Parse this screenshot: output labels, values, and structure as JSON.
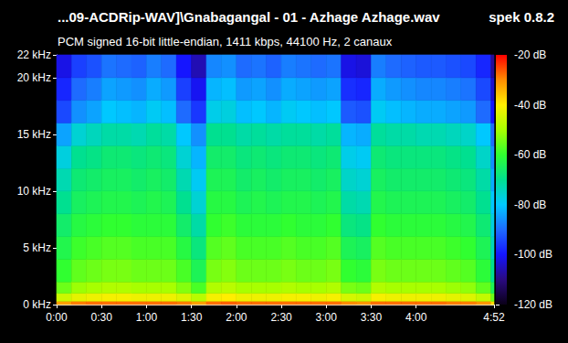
{
  "chart_data": {
    "type": "heatmap",
    "title": "...09-ACDRip-WAV]\\Gnabagangal - 01 - Azhage Azhage.wav",
    "subtitle": "PCM signed 16-bit little-endian, 1411 kbps, 44100 Hz, 2 canaux",
    "annotations": [
      "spek 0.8.2"
    ],
    "xlim": [
      0,
      292
    ],
    "xticks": [
      {
        "value": 0,
        "label": "0:00"
      },
      {
        "value": 30,
        "label": "0:30"
      },
      {
        "value": 60,
        "label": "1:00"
      },
      {
        "value": 90,
        "label": "1:30"
      },
      {
        "value": 120,
        "label": "2:00"
      },
      {
        "value": 150,
        "label": "2:30"
      },
      {
        "value": 180,
        "label": "3:00"
      },
      {
        "value": 210,
        "label": "3:30"
      },
      {
        "value": 240,
        "label": "4:00"
      },
      {
        "value": 292,
        "label": "4:52"
      }
    ],
    "ylim": [
      0,
      22
    ],
    "yticks": [
      {
        "value": 0,
        "label": "0 kHz"
      },
      {
        "value": 5,
        "label": "5 kHz"
      },
      {
        "value": 10,
        "label": "10 kHz"
      },
      {
        "value": 15,
        "label": "15 kHz"
      },
      {
        "value": 20,
        "label": "20 kHz"
      },
      {
        "value": 22,
        "label": "22 kHz"
      }
    ],
    "time_edges": [
      0,
      10,
      20,
      30,
      40,
      50,
      60,
      70,
      80,
      90,
      100,
      110,
      120,
      130,
      140,
      150,
      160,
      170,
      180,
      190,
      200,
      210,
      220,
      230,
      240,
      250,
      260,
      270,
      280,
      290,
      292
    ],
    "freq_edges": [
      0,
      0.3,
      1,
      2,
      4,
      6,
      8,
      10,
      12,
      14,
      16,
      18,
      20,
      22
    ],
    "cells": [
      [
        -32,
        -46,
        -55,
        -60,
        -63,
        -66,
        -70,
        -73,
        -77,
        -84,
        -94,
        -98,
        -102
      ],
      [
        -29,
        -43,
        -51,
        -56,
        -59,
        -62,
        -65,
        -67,
        -70,
        -76,
        -86,
        -90,
        -95
      ],
      [
        -28,
        -42,
        -50,
        -55,
        -58,
        -61,
        -64,
        -66,
        -69,
        -74,
        -84,
        -88,
        -93
      ],
      [
        -28,
        -41,
        -49,
        -54,
        -57,
        -60,
        -63,
        -65,
        -67,
        -72,
        -80,
        -84,
        -89
      ],
      [
        -28,
        -41,
        -49,
        -54,
        -57,
        -60,
        -63,
        -65,
        -67,
        -72,
        -81,
        -85,
        -90
      ],
      [
        -28,
        -42,
        -50,
        -55,
        -58,
        -61,
        -64,
        -66,
        -68,
        -73,
        -82,
        -86,
        -91
      ],
      [
        -28,
        -42,
        -50,
        -55,
        -58,
        -61,
        -63,
        -65,
        -67,
        -71,
        -79,
        -83,
        -88
      ],
      [
        -28,
        -42,
        -50,
        -55,
        -58,
        -61,
        -64,
        -66,
        -68,
        -72,
        -81,
        -85,
        -90
      ],
      [
        -29,
        -44,
        -53,
        -58,
        -62,
        -66,
        -70,
        -73,
        -76,
        -80,
        -90,
        -95,
        -100
      ],
      [
        -32,
        -48,
        -58,
        -64,
        -68,
        -72,
        -76,
        -79,
        -82,
        -86,
        -96,
        -101,
        -106
      ],
      [
        -28,
        -41,
        -49,
        -54,
        -57,
        -60,
        -62,
        -64,
        -66,
        -70,
        -78,
        -82,
        -87
      ],
      [
        -27,
        -40,
        -48,
        -53,
        -56,
        -59,
        -62,
        -64,
        -66,
        -70,
        -77,
        -81,
        -86
      ],
      [
        -28,
        -42,
        -50,
        -55,
        -58,
        -61,
        -64,
        -66,
        -68,
        -72,
        -81,
        -85,
        -90
      ],
      [
        -28,
        -42,
        -50,
        -55,
        -58,
        -61,
        -63,
        -65,
        -67,
        -71,
        -80,
        -84,
        -89
      ],
      [
        -28,
        -42,
        -50,
        -55,
        -58,
        -61,
        -64,
        -66,
        -68,
        -72,
        -82,
        -86,
        -91
      ],
      [
        -28,
        -41,
        -49,
        -54,
        -57,
        -60,
        -63,
        -65,
        -67,
        -71,
        -79,
        -83,
        -88
      ],
      [
        -28,
        -41,
        -50,
        -55,
        -58,
        -61,
        -63,
        -65,
        -67,
        -71,
        -80,
        -84,
        -89
      ],
      [
        -28,
        -42,
        -50,
        -55,
        -58,
        -61,
        -64,
        -66,
        -68,
        -72,
        -81,
        -85,
        -90
      ],
      [
        -28,
        -41,
        -49,
        -54,
        -57,
        -60,
        -63,
        -65,
        -67,
        -71,
        -80,
        -84,
        -89
      ],
      [
        -30,
        -45,
        -54,
        -60,
        -64,
        -68,
        -72,
        -75,
        -78,
        -82,
        -92,
        -97,
        -102
      ],
      [
        -31,
        -46,
        -55,
        -61,
        -65,
        -69,
        -73,
        -76,
        -79,
        -83,
        -93,
        -98,
        -103
      ],
      [
        -28,
        -41,
        -49,
        -54,
        -57,
        -60,
        -63,
        -65,
        -67,
        -71,
        -79,
        -83,
        -88
      ],
      [
        -28,
        -42,
        -50,
        -55,
        -58,
        -61,
        -64,
        -66,
        -68,
        -72,
        -81,
        -85,
        -90
      ],
      [
        -28,
        -42,
        -50,
        -55,
        -58,
        -61,
        -64,
        -66,
        -68,
        -72,
        -82,
        -86,
        -91
      ],
      [
        -28,
        -42,
        -50,
        -55,
        -58,
        -61,
        -64,
        -66,
        -68,
        -73,
        -83,
        -87,
        -92
      ],
      [
        -28,
        -42,
        -50,
        -55,
        -58,
        -61,
        -64,
        -66,
        -68,
        -73,
        -83,
        -87,
        -92
      ],
      [
        -29,
        -43,
        -51,
        -56,
        -59,
        -62,
        -65,
        -67,
        -69,
        -74,
        -84,
        -88,
        -93
      ],
      [
        -29,
        -44,
        -52,
        -57,
        -60,
        -63,
        -66,
        -68,
        -70,
        -75,
        -85,
        -89,
        -94
      ],
      [
        -31,
        -47,
        -56,
        -61,
        -64,
        -67,
        -70,
        -72,
        -75,
        -80,
        -90,
        -94,
        -98
      ],
      [
        -38,
        -55,
        -64,
        -70,
        -74,
        -77,
        -80,
        -83,
        -86,
        -90,
        -100,
        -104,
        -108
      ]
    ],
    "colorbar": {
      "range": [
        -120,
        -20
      ],
      "ticks": [
        {
          "value": -20,
          "label": "-20 dB"
        },
        {
          "value": -40,
          "label": "-40 dB"
        },
        {
          "value": -60,
          "label": "-60 dB"
        },
        {
          "value": -80,
          "label": "-80 dB"
        },
        {
          "value": -100,
          "label": "-100 dB"
        },
        {
          "value": -120,
          "label": "-120 dB"
        }
      ]
    }
  }
}
